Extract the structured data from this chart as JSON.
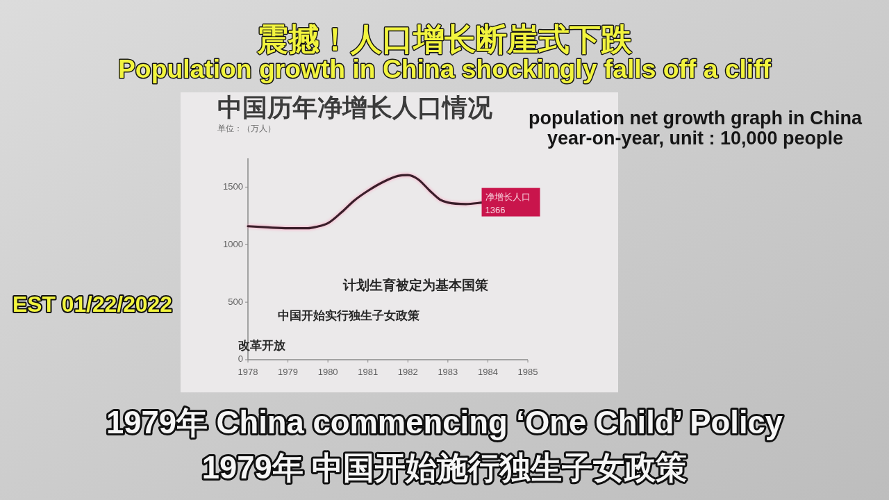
{
  "chart_data": {
    "type": "line",
    "title": "中国历年净增长人口情况",
    "subtitle": "单位：（万人）",
    "x": [
      1978,
      1978.5,
      1979,
      1979.5,
      1979.7,
      1980,
      1980.35,
      1980.65,
      1981,
      1981.4,
      1981.75,
      1982,
      1982.25,
      1982.55,
      1982.8,
      1983,
      1983.45,
      1983.88
    ],
    "series": [
      {
        "name": "净增长人口",
        "color": "#3a1e2a",
        "values": [
          1160,
          1150,
          1143,
          1143,
          1154,
          1186,
          1284,
          1381,
          1468,
          1548,
          1597,
          1604,
          1569,
          1468,
          1392,
          1366,
          1353,
          1366
        ],
        "value_labels": [
          null,
          null,
          null,
          null,
          null,
          null,
          null,
          null,
          null,
          null,
          null,
          null,
          null,
          null,
          null,
          null,
          null,
          "1366"
        ]
      }
    ],
    "xlim": [
      1978,
      1985
    ],
    "xticks": [
      1978,
      1979,
      1980,
      1981,
      1982,
      1983,
      1984,
      1985
    ],
    "ylim": [
      0,
      1750
    ],
    "yticks": [
      0,
      500,
      1000,
      1500
    ],
    "annotations": [
      "震撼！人口增长断崖式下跌",
      "Population growth in China shockingly falls off a cliff",
      "population net growth graph in China year-on-year, unit : 10,000 people",
      "计划生育被定为基本国策",
      "中国开始实行独生子女政策",
      "EST 01/22/2022",
      "改革开放",
      "1979年 China commencing ‘One Child’ Policy",
      "1979年 中国开始施行独生子女政策"
    ]
  }
}
